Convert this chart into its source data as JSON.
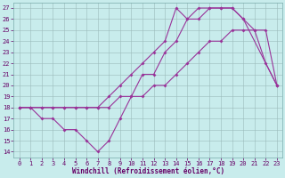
{
  "xlabel": "Windchill (Refroidissement éolien,°C)",
  "bg_color": "#c8ecec",
  "grid_color": "#b0c8c8",
  "line_color": "#993399",
  "xlim": [
    -0.5,
    23.5
  ],
  "ylim": [
    13.5,
    27.5
  ],
  "yticks": [
    14,
    15,
    16,
    17,
    18,
    19,
    20,
    21,
    22,
    23,
    24,
    25,
    26,
    27
  ],
  "xticks": [
    0,
    1,
    2,
    3,
    4,
    5,
    6,
    7,
    8,
    9,
    10,
    11,
    12,
    13,
    14,
    15,
    16,
    17,
    18,
    19,
    20,
    21,
    22,
    23
  ],
  "line1_x": [
    0,
    1,
    2,
    3,
    4,
    5,
    6,
    7,
    8,
    9,
    10,
    11,
    12,
    13,
    14,
    15,
    16,
    17,
    18,
    19,
    20,
    21,
    22,
    23
  ],
  "line1_y": [
    18,
    18,
    18,
    18,
    18,
    18,
    18,
    18,
    18,
    19,
    19,
    19,
    20,
    20,
    21,
    22,
    23,
    24,
    24,
    25,
    25,
    25,
    25,
    20
  ],
  "line2_x": [
    0,
    1,
    2,
    3,
    4,
    5,
    6,
    7,
    8,
    9,
    10,
    11,
    12,
    13,
    14,
    15,
    16,
    17,
    18,
    19,
    20,
    21,
    22,
    23
  ],
  "line2_y": [
    18,
    18,
    17,
    17,
    16,
    16,
    15,
    14,
    15,
    17,
    19,
    21,
    21,
    23,
    24,
    26,
    26,
    27,
    27,
    27,
    26,
    25,
    22,
    20
  ],
  "line3_x": [
    0,
    1,
    2,
    3,
    4,
    5,
    6,
    7,
    8,
    9,
    10,
    11,
    12,
    13,
    14,
    15,
    16,
    17,
    18,
    19,
    20,
    23
  ],
  "line3_y": [
    18,
    18,
    18,
    18,
    18,
    18,
    18,
    18,
    19,
    20,
    21,
    22,
    23,
    24,
    27,
    26,
    27,
    27,
    27,
    27,
    26,
    20
  ],
  "tick_fontsize": 5,
  "xlabel_fontsize": 5.5,
  "markersize": 2,
  "linewidth": 0.8
}
